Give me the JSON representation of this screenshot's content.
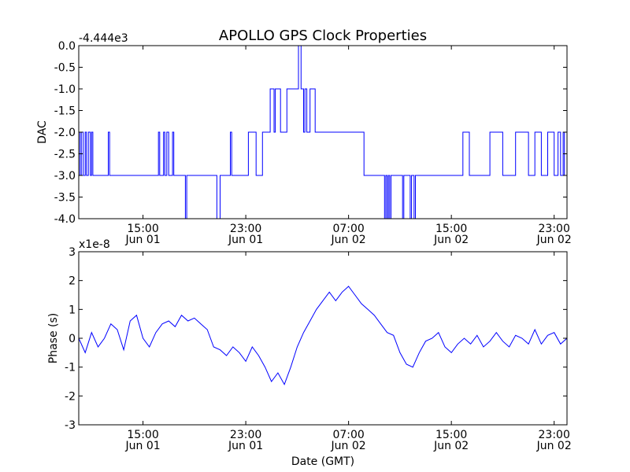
{
  "figure": {
    "title": "APOLLO GPS Clock Properties"
  },
  "chart_data": [
    {
      "type": "line",
      "step": true,
      "title": "APOLLO GPS Clock Properties",
      "xlabel": "",
      "ylabel": "DAC",
      "offset_label": "-4.444e3",
      "x_unit": "hours since Jun 01 10:00 GMT",
      "xlim": [
        0,
        38
      ],
      "ylim": [
        -4.0,
        0.0
      ],
      "y_ticks": [
        0.0,
        -0.5,
        -1.0,
        -1.5,
        -2.0,
        -2.5,
        -3.0,
        -3.5,
        -4.0
      ],
      "y_tick_labels": [
        "0.0",
        "-0.5",
        "-1.0",
        "-1.5",
        "-2.0",
        "-2.5",
        "-3.0",
        "-3.5",
        "-4.0"
      ],
      "x_ticks": [
        5,
        13,
        21,
        29,
        37
      ],
      "x_tick_labels": [
        {
          "time": "15:00",
          "date": "Jun 01"
        },
        {
          "time": "23:00",
          "date": "Jun 01"
        },
        {
          "time": "07:00",
          "date": "Jun 02"
        },
        {
          "time": "15:00",
          "date": "Jun 02"
        },
        {
          "time": "23:00",
          "date": "Jun 02"
        }
      ],
      "series": [
        {
          "name": "DAC",
          "color": "#0000ff",
          "x": [
            0,
            0.1,
            0.2,
            0.35,
            0.5,
            0.6,
            0.75,
            0.9,
            1.0,
            1.1,
            1.25,
            1.4,
            2.3,
            2.4,
            2.5,
            2.6,
            2.7,
            2.8,
            3.0,
            3.2,
            3.4,
            3.6,
            4.0,
            4.5,
            5.0,
            5.6,
            6.2,
            6.3,
            6.6,
            6.7,
            6.85,
            7.0,
            7.3,
            7.4,
            8.3,
            8.4,
            8.5,
            8.6,
            9.0,
            9.5,
            10.0,
            10.6,
            10.75,
            11.0,
            11.3,
            11.8,
            11.9,
            12.5,
            13.0,
            13.2,
            13.8,
            14.3,
            14.9,
            15.2,
            15.3,
            15.7,
            16.2,
            16.6,
            17.1,
            17.3,
            17.5,
            17.6,
            17.75,
            18.0,
            18.4,
            18.6,
            18.9,
            19.3,
            19.4,
            19.8,
            19.9,
            20.2,
            20.5,
            21.0,
            21.5,
            21.9,
            22.2,
            22.4,
            23.0,
            23.6,
            23.8,
            23.9,
            24.0,
            24.1,
            24.2,
            24.3,
            24.5,
            24.8,
            25.2,
            25.3,
            25.6,
            25.8,
            25.9,
            26.1,
            26.2,
            26.5,
            26.6,
            27.3,
            27.8,
            28.3,
            28.9,
            29.0,
            29.5,
            29.9,
            30.4,
            31.2,
            32.0,
            33.0,
            34.0,
            34.5,
            35.0,
            35.5,
            36.0,
            36.5,
            37.0,
            37.3,
            37.5,
            37.7,
            37.8,
            38.0
          ],
          "y": [
            -2,
            -3,
            -2,
            -3,
            -2,
            -3,
            -2,
            -3,
            -2,
            -3,
            -3,
            -3,
            -2,
            -3,
            -3,
            -3,
            -3,
            -3,
            -3,
            -3,
            -3,
            -3,
            -3,
            -3,
            -3,
            -3,
            -2,
            -3,
            -2,
            -3,
            -2,
            -3,
            -2,
            -3,
            -4,
            -3,
            -3,
            -3,
            -3,
            -3,
            -3,
            -3,
            -4,
            -3,
            -3,
            -2,
            -3,
            -3,
            -3,
            -2,
            -3,
            -2,
            -1,
            -2,
            -1,
            -2,
            -1,
            -1,
            0,
            -1,
            -2,
            -1,
            -2,
            -1,
            -2,
            -2,
            -2,
            -2,
            -2,
            -2,
            -2,
            -2,
            -2,
            -2,
            -2,
            -2,
            -3,
            -3,
            -3,
            -3,
            -4,
            -3,
            -4,
            -3,
            -4,
            -3,
            -3,
            -3,
            -4,
            -3,
            -3,
            -4,
            -3,
            -4,
            -3,
            -3,
            -3,
            -3,
            -3,
            -3,
            -3,
            -3,
            -3,
            -2,
            -3,
            -3,
            -2,
            -3,
            -2,
            -2,
            -3,
            -2,
            -3,
            -2,
            -3,
            -2,
            -3,
            -2,
            -3,
            -3
          ],
          "points_sampled": true
        }
      ]
    },
    {
      "type": "line",
      "title": "",
      "xlabel": "Date (GMT)",
      "ylabel": "Phase (s)",
      "offset_label": "x1e-8",
      "x_unit": "hours since Jun 01 10:00 GMT",
      "xlim": [
        0,
        38
      ],
      "ylim": [
        -3,
        3
      ],
      "y_ticks": [
        3,
        2,
        1,
        0,
        -1,
        -2,
        -3
      ],
      "y_tick_labels": [
        "3",
        "2",
        "1",
        "0",
        "-1",
        "-2",
        "-3"
      ],
      "x_ticks": [
        5,
        13,
        21,
        29,
        37
      ],
      "x_tick_labels": [
        {
          "time": "15:00",
          "date": "Jun 01"
        },
        {
          "time": "23:00",
          "date": "Jun 01"
        },
        {
          "time": "07:00",
          "date": "Jun 02"
        },
        {
          "time": "15:00",
          "date": "Jun 02"
        },
        {
          "time": "23:00",
          "date": "Jun 02"
        }
      ],
      "series": [
        {
          "name": "Phase",
          "color": "#0000ff",
          "x": [
            0,
            0.5,
            1,
            1.5,
            2,
            2.5,
            3,
            3.5,
            4,
            4.5,
            5,
            5.5,
            6,
            6.5,
            7,
            7.5,
            8,
            8.5,
            9,
            9.5,
            10,
            10.5,
            11,
            11.5,
            12,
            12.5,
            13,
            13.5,
            14,
            14.5,
            15,
            15.5,
            16,
            16.5,
            17,
            17.5,
            18,
            18.5,
            19,
            19.5,
            20,
            20.5,
            21,
            21.5,
            22,
            22.5,
            23,
            23.5,
            24,
            24.5,
            25,
            25.5,
            26,
            26.5,
            27,
            27.5,
            28,
            28.5,
            29,
            29.5,
            30,
            30.5,
            31,
            31.5,
            32,
            32.5,
            33,
            33.5,
            34,
            34.5,
            35,
            35.5,
            36,
            36.5,
            37,
            37.5,
            38
          ],
          "y": [
            0,
            -0.5,
            0.2,
            -0.3,
            0,
            0.5,
            0.3,
            -0.4,
            0.6,
            0.8,
            0,
            -0.3,
            0.2,
            0.5,
            0.6,
            0.4,
            0.8,
            0.6,
            0.7,
            0.5,
            0.3,
            -0.3,
            -0.4,
            -0.6,
            -0.3,
            -0.5,
            -0.8,
            -0.3,
            -0.6,
            -1,
            -1.5,
            -1.2,
            -1.6,
            -1,
            -0.3,
            0.2,
            0.6,
            1,
            1.3,
            1.6,
            1.3,
            1.6,
            1.8,
            1.5,
            1.2,
            1,
            0.8,
            0.5,
            0.2,
            0.1,
            -0.5,
            -0.9,
            -1,
            -0.5,
            -0.1,
            0,
            0.2,
            -0.3,
            -0.5,
            -0.2,
            0,
            -0.2,
            0.1,
            -0.3,
            -0.1,
            0.2,
            -0.1,
            -0.3,
            0.1,
            0,
            -0.2,
            0.3,
            -0.2,
            0.1,
            0.2,
            -0.2,
            0
          ],
          "points_sampled": true
        }
      ]
    }
  ]
}
